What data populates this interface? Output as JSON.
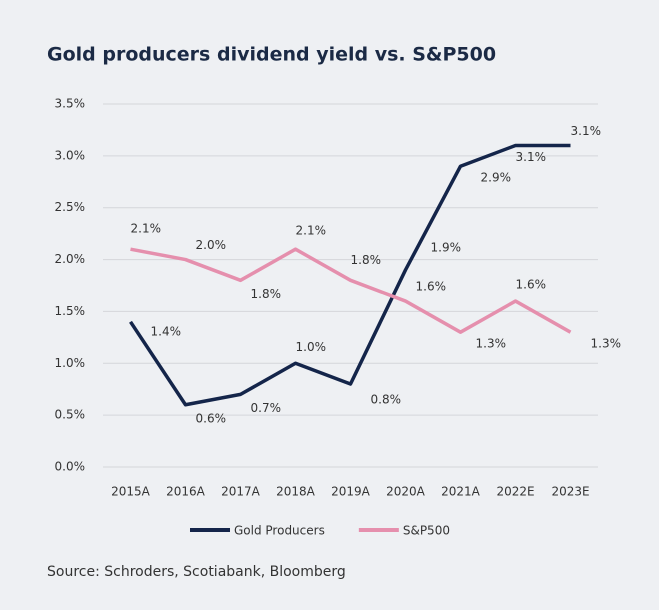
{
  "chart_data": {
    "type": "line",
    "title": "Gold producers dividend yield vs. S&P500",
    "source": "Source: Schroders, Scotiabank, Bloomberg",
    "categories": [
      "2015A",
      "2016A",
      "2017A",
      "2018A",
      "2019A",
      "2020A",
      "2021A",
      "2022E",
      "2023E"
    ],
    "series": [
      {
        "name": "Gold Producers",
        "color": "#14254a",
        "values": [
          1.4,
          0.6,
          0.7,
          1.0,
          0.8,
          1.9,
          2.9,
          3.1,
          3.1
        ],
        "value_labels": [
          "1.4%",
          "0.6%",
          "0.7%",
          "1.0%",
          "0.8%",
          "1.9%",
          "2.9%",
          "3.1%",
          "3.1%"
        ]
      },
      {
        "name": "S&P500",
        "color": "#e58fad",
        "values": [
          2.1,
          2.0,
          1.8,
          2.1,
          1.8,
          1.6,
          1.3,
          1.6,
          1.3
        ],
        "value_labels": [
          "2.1%",
          "2.0%",
          "1.8%",
          "2.1%",
          "1.8%",
          "1.6%",
          "1.3%",
          "1.6%",
          "1.3%"
        ]
      }
    ],
    "ylim": [
      0,
      3.5
    ],
    "yticks": [
      {
        "value": 0,
        "label": "0.0%"
      },
      {
        "value": 0.5,
        "label": "0.5%"
      },
      {
        "value": 1,
        "label": "1.0%"
      },
      {
        "value": 1.5,
        "label": "1.5%"
      },
      {
        "value": 2,
        "label": "2.0%"
      },
      {
        "value": 2.5,
        "label": "2.5%"
      },
      {
        "value": 3,
        "label": "3.0%"
      },
      {
        "value": 3.5,
        "label": "3.5%"
      }
    ],
    "grid": true
  }
}
